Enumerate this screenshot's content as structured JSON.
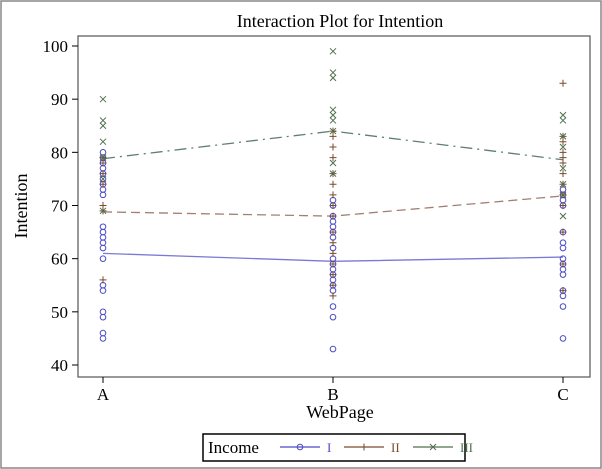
{
  "chart_data": {
    "type": "line",
    "title": "Interaction Plot for Intention",
    "xlabel": "WebPage",
    "ylabel": "Intention",
    "categories": [
      "A",
      "B",
      "C"
    ],
    "ylim": [
      40,
      100
    ],
    "yticks": [
      40,
      50,
      60,
      70,
      80,
      90,
      100
    ],
    "grid": false,
    "legend": {
      "title": "Income",
      "placement": "bottom"
    },
    "series": [
      {
        "name": "I",
        "marker": "circle",
        "color": "#4a4ac8",
        "line_color": "#7a7ad6",
        "line_style": "solid",
        "means": [
          61,
          59.5,
          60.3
        ],
        "points": {
          "A": [
            45,
            46,
            49,
            50,
            54,
            55,
            60,
            62,
            63,
            64,
            65,
            66,
            72,
            73,
            74,
            75,
            76,
            77,
            78,
            79,
            80
          ],
          "B": [
            43,
            49,
            51,
            54,
            55,
            56,
            57,
            58,
            59,
            60,
            62,
            64,
            65,
            66,
            67,
            68,
            70,
            71
          ],
          "C": [
            45,
            51,
            53,
            54,
            57,
            58,
            59,
            60,
            62,
            63,
            65,
            70,
            71,
            72,
            73
          ]
        }
      },
      {
        "name": "II",
        "marker": "plus",
        "color": "#7a4a2a",
        "line_color": "#a08070",
        "line_style": "dashed",
        "means": [
          68.8,
          68,
          71.8
        ],
        "points": {
          "A": [
            56,
            69,
            70,
            74,
            76,
            78,
            79
          ],
          "B": [
            53,
            55,
            57,
            59,
            61,
            63,
            65,
            68,
            70,
            72,
            74,
            76,
            79,
            81,
            83,
            84
          ],
          "C": [
            54,
            59,
            65,
            70,
            72,
            74,
            76,
            78,
            79,
            80,
            82,
            83,
            93
          ]
        }
      },
      {
        "name": "III",
        "marker": "x",
        "color": "#4f6f4f",
        "line_color": "#5f7f6f",
        "line_style": "dashdot",
        "means": [
          78.8,
          84,
          78.6
        ],
        "points": {
          "A": [
            90,
            86,
            85,
            82,
            79,
            75,
            69
          ],
          "B": [
            99,
            95,
            94,
            88,
            87,
            86,
            84,
            78,
            76
          ],
          "C": [
            87,
            86,
            83,
            81,
            77,
            74,
            72,
            68
          ]
        }
      }
    ]
  }
}
